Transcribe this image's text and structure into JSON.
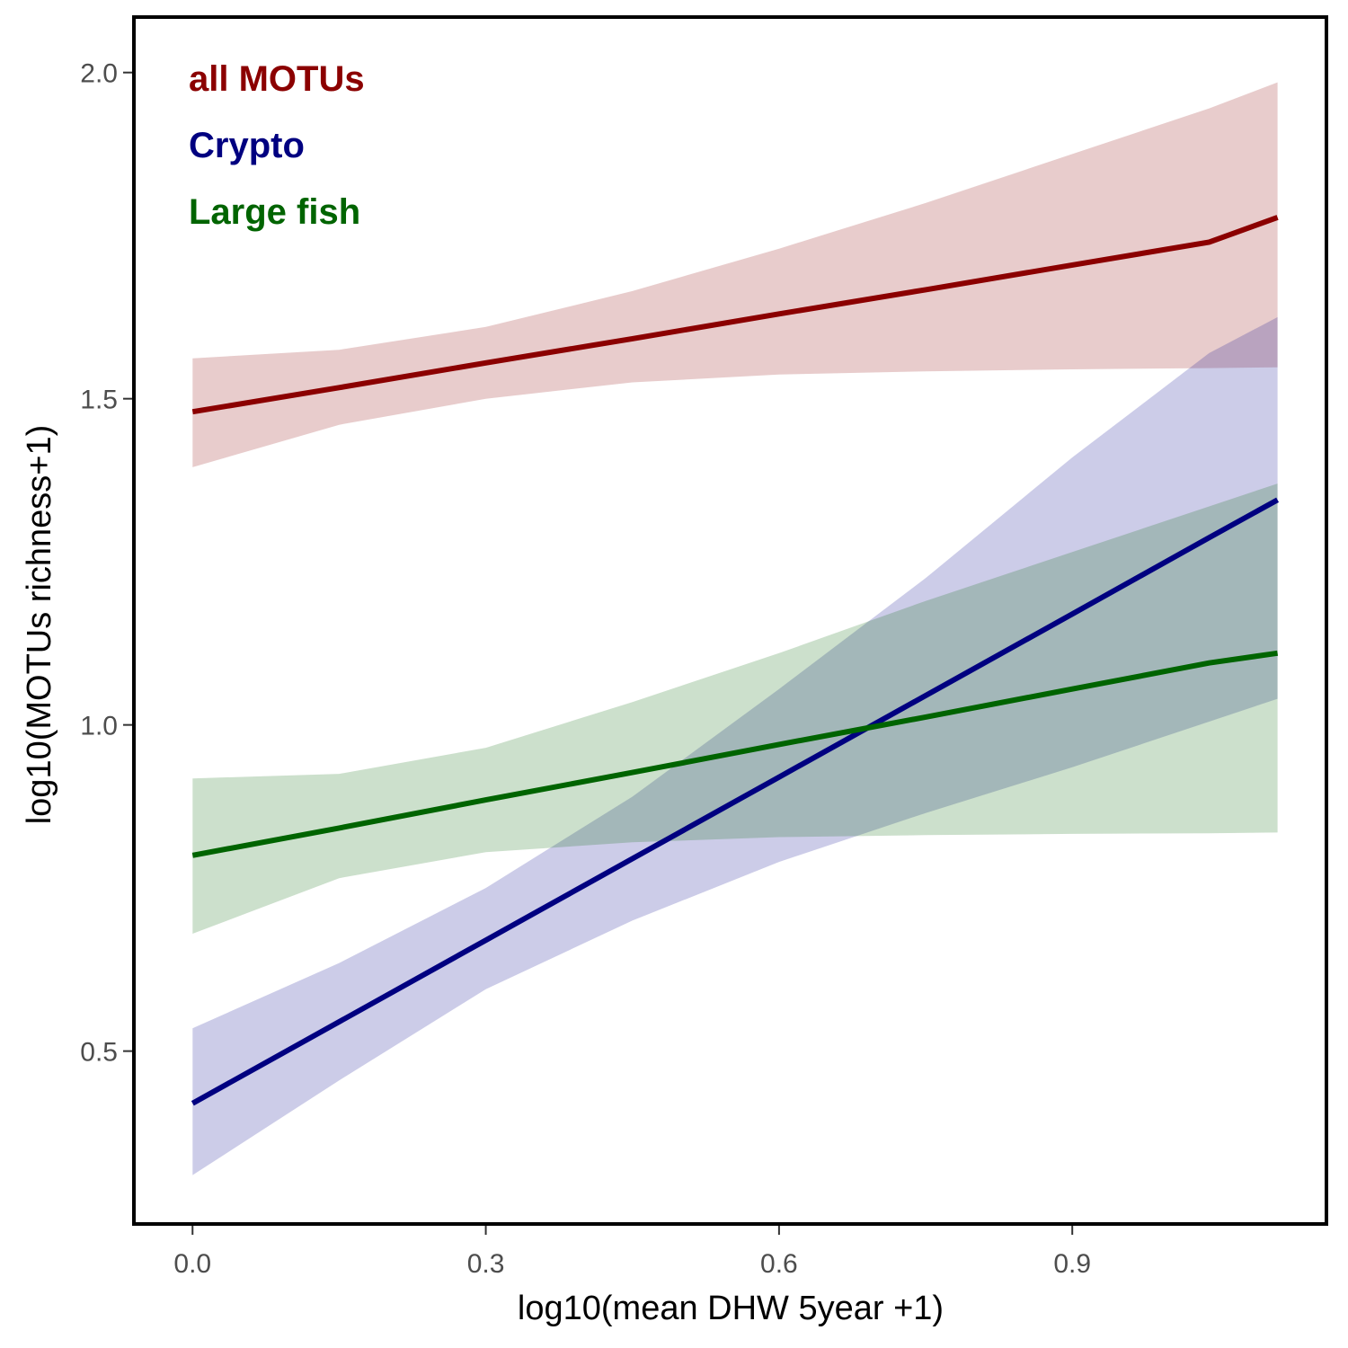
{
  "chart_data": {
    "type": "line",
    "title": "",
    "xlabel": "log10(mean DHW 5year +1)",
    "ylabel": "log10(MOTUs richness+1)",
    "xlim": [
      -0.06,
      1.16
    ],
    "ylim": [
      0.235,
      2.085
    ],
    "xticks": [
      0.0,
      0.3,
      0.6,
      0.9
    ],
    "xtick_labels": [
      "0.0",
      "0.3",
      "0.6",
      "0.9"
    ],
    "yticks": [
      0.5,
      1.0,
      1.5,
      2.0
    ],
    "ytick_labels": [
      "0.5",
      "1.0",
      "1.5",
      "2.0"
    ],
    "grid": false,
    "legend_position": "top-left",
    "series": [
      {
        "name": "all MOTUs",
        "color": "#8B0000",
        "band_color": "#8B0000",
        "x": [
          0.0,
          0.15,
          0.3,
          0.45,
          0.6,
          0.75,
          0.9,
          1.04,
          1.11
        ],
        "y": [
          1.48,
          1.517,
          1.555,
          1.592,
          1.63,
          1.667,
          1.705,
          1.74,
          1.778
        ],
        "ci_lower": [
          1.395,
          1.46,
          1.5,
          1.525,
          1.537,
          1.542,
          1.545,
          1.547,
          1.548
        ],
        "ci_upper": [
          1.562,
          1.575,
          1.61,
          1.665,
          1.73,
          1.8,
          1.875,
          1.945,
          1.985
        ]
      },
      {
        "name": "Crypto",
        "color": "#000080",
        "band_color": "#00008B",
        "x": [
          0.0,
          0.15,
          0.3,
          0.45,
          0.6,
          0.75,
          0.9,
          1.04,
          1.11
        ],
        "y": [
          0.42,
          0.545,
          0.67,
          0.795,
          0.92,
          1.045,
          1.17,
          1.287,
          1.345
        ],
        "ci_lower": [
          0.31,
          0.455,
          0.595,
          0.7,
          0.79,
          0.865,
          0.935,
          1.005,
          1.04
        ],
        "ci_upper": [
          0.535,
          0.635,
          0.75,
          0.89,
          1.055,
          1.225,
          1.41,
          1.57,
          1.625
        ]
      },
      {
        "name": "Large fish",
        "color": "#006400",
        "band_color": "#006400",
        "x": [
          0.0,
          0.15,
          0.3,
          0.45,
          0.6,
          0.75,
          0.9,
          1.04,
          1.11
        ],
        "y": [
          0.8,
          0.842,
          0.885,
          0.927,
          0.97,
          1.012,
          1.055,
          1.095,
          1.11
        ],
        "ci_lower": [
          0.68,
          0.765,
          0.805,
          0.82,
          0.828,
          0.831,
          0.833,
          0.834,
          0.835
        ],
        "ci_upper": [
          0.918,
          0.925,
          0.965,
          1.035,
          1.11,
          1.19,
          1.265,
          1.335,
          1.37
        ]
      }
    ]
  }
}
